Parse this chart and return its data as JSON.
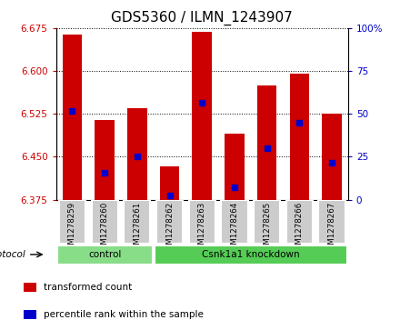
{
  "title": "GDS5360 / ILMN_1243907",
  "samples": [
    "GSM1278259",
    "GSM1278260",
    "GSM1278261",
    "GSM1278262",
    "GSM1278263",
    "GSM1278264",
    "GSM1278265",
    "GSM1278266",
    "GSM1278267"
  ],
  "bar_tops": [
    6.663,
    6.515,
    6.535,
    6.433,
    6.668,
    6.49,
    6.575,
    6.595,
    6.525
  ],
  "bar_bottom": 6.375,
  "percentile_values": [
    6.53,
    6.422,
    6.45,
    6.382,
    6.545,
    6.397,
    6.465,
    6.51,
    6.44
  ],
  "ylim": [
    6.375,
    6.675
  ],
  "yticks": [
    6.375,
    6.45,
    6.525,
    6.6,
    6.675
  ],
  "right_yticks": [
    0,
    25,
    50,
    75,
    100
  ],
  "right_ylim": [
    0,
    100
  ],
  "bar_color": "#CC0000",
  "percentile_color": "#0000CC",
  "grid_color": "#000000",
  "title_fontsize": 11,
  "tick_label_color_left": "#CC0000",
  "tick_label_color_right": "#0000CC",
  "groups": [
    {
      "label": "control",
      "start": 0,
      "end": 2,
      "color": "#88DD88"
    },
    {
      "label": "Csnk1a1 knockdown",
      "start": 3,
      "end": 8,
      "color": "#55CC55"
    }
  ],
  "protocol_label": "protocol",
  "legend_items": [
    {
      "label": "transformed count",
      "color": "#CC0000"
    },
    {
      "label": "percentile rank within the sample",
      "color": "#0000CC"
    }
  ],
  "bar_width": 0.6,
  "xtick_bg": "#CCCCCC"
}
